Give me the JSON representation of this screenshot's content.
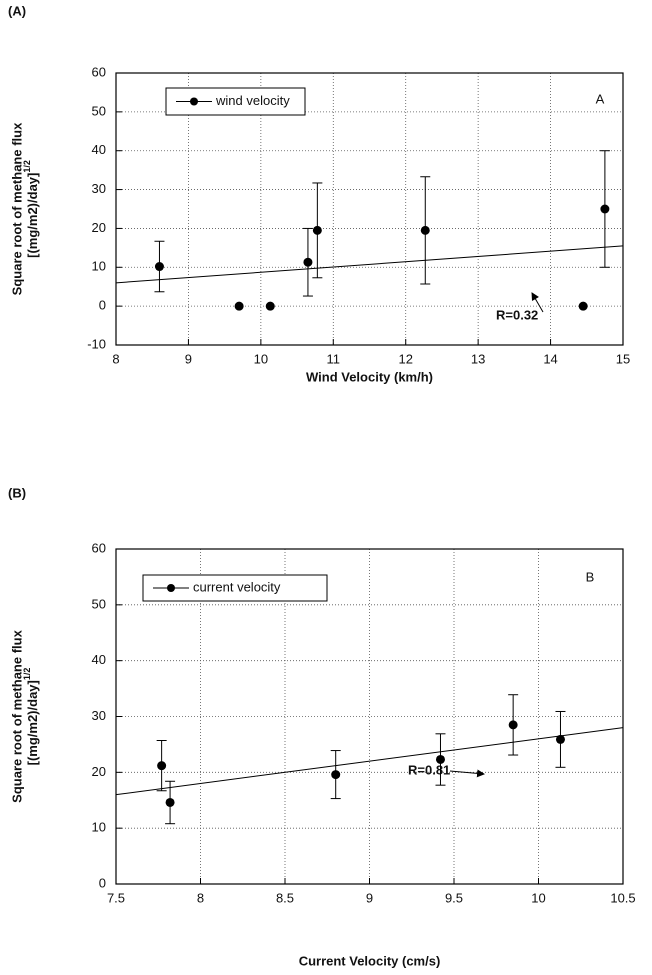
{
  "chart_data": [
    {
      "type": "scatter",
      "panel_label": "(A)",
      "title": "A",
      "xlabel": "Wind Velocity (km/h)",
      "ylabel": [
        "Square root of methane flux",
        "[(mg/m2)/day]"
      ],
      "ylabel_sup": "1/2",
      "xlim": [
        8,
        15
      ],
      "ylim": [
        -10,
        60
      ],
      "xticks": [
        8,
        9,
        10,
        11,
        12,
        13,
        14,
        15
      ],
      "yticks": [
        -10,
        0,
        10,
        20,
        30,
        40,
        50,
        60
      ],
      "grid": true,
      "legend": "upper left",
      "series": [
        {
          "name": "wind velocity",
          "color": "#000000",
          "x": [
            8.6,
            9.7,
            10.13,
            10.65,
            10.78,
            12.27,
            14.45,
            14.75
          ],
          "values": [
            10.2,
            0,
            0,
            11.3,
            19.5,
            19.5,
            0,
            25
          ],
          "errors": [
            6.5,
            null,
            null,
            8.7,
            12.2,
            13.8,
            null,
            15
          ]
        }
      ],
      "trend": {
        "x": [
          8,
          15
        ],
        "values": [
          6,
          15.5
        ]
      },
      "annotation": "R=0.32"
    },
    {
      "type": "scatter",
      "panel_label": "(B)",
      "title": "B",
      "xlabel": "Current Velocity (cm/s)",
      "ylabel": [
        "Square root of methane flux",
        "[(mg/m2)/day]"
      ],
      "ylabel_sup": "1/2",
      "xlim": [
        7.5,
        10.5
      ],
      "ylim": [
        0,
        60
      ],
      "xticks": [
        7.5,
        8,
        8.5,
        9,
        9.5,
        10,
        10.5
      ],
      "yticks": [
        0,
        10,
        20,
        30,
        40,
        50,
        60
      ],
      "grid": true,
      "legend": "upper left",
      "series": [
        {
          "name": "current velocity",
          "color": "#000000",
          "x": [
            7.77,
            7.82,
            8.8,
            9.42,
            9.85,
            10.13
          ],
          "values": [
            21.2,
            14.6,
            19.6,
            22.3,
            28.5,
            25.9
          ],
          "errors": [
            4.5,
            3.8,
            4.3,
            4.6,
            5.4,
            5
          ]
        }
      ],
      "trend": {
        "x": [
          7.5,
          10.5
        ],
        "values": [
          16,
          28
        ]
      },
      "annotation": "R=0.81"
    }
  ]
}
